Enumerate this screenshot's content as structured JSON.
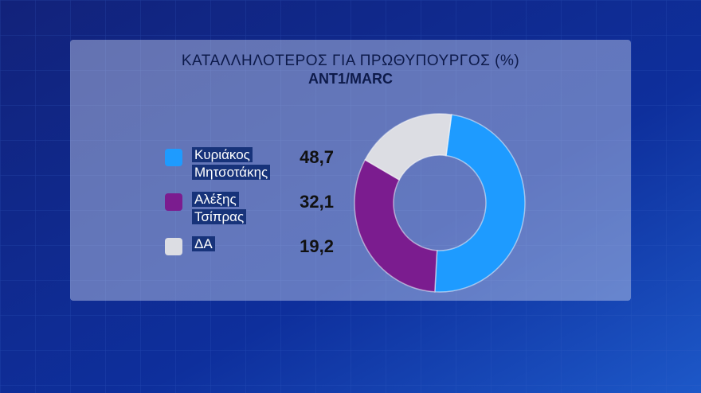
{
  "chart_data": {
    "type": "donut",
    "title": "ΚΑΤΑΛΛΗΛΟΤΕΡΟΣ ΓΙΑ ΠΡΩΘΥΠΟΥΡΓΟΣ (%)",
    "subtitle": "ANT1/MARC",
    "categories": [
      "Κυριάκος Μητσοτάκης",
      "Αλέξης Τσίπρας",
      "ΔΑ"
    ],
    "values": [
      48.7,
      32.1,
      19.2
    ],
    "value_labels": [
      "48,7",
      "32,1",
      "19,2"
    ],
    "colors": [
      "#1e9bff",
      "#7b1c8f",
      "#dcdde3"
    ]
  }
}
